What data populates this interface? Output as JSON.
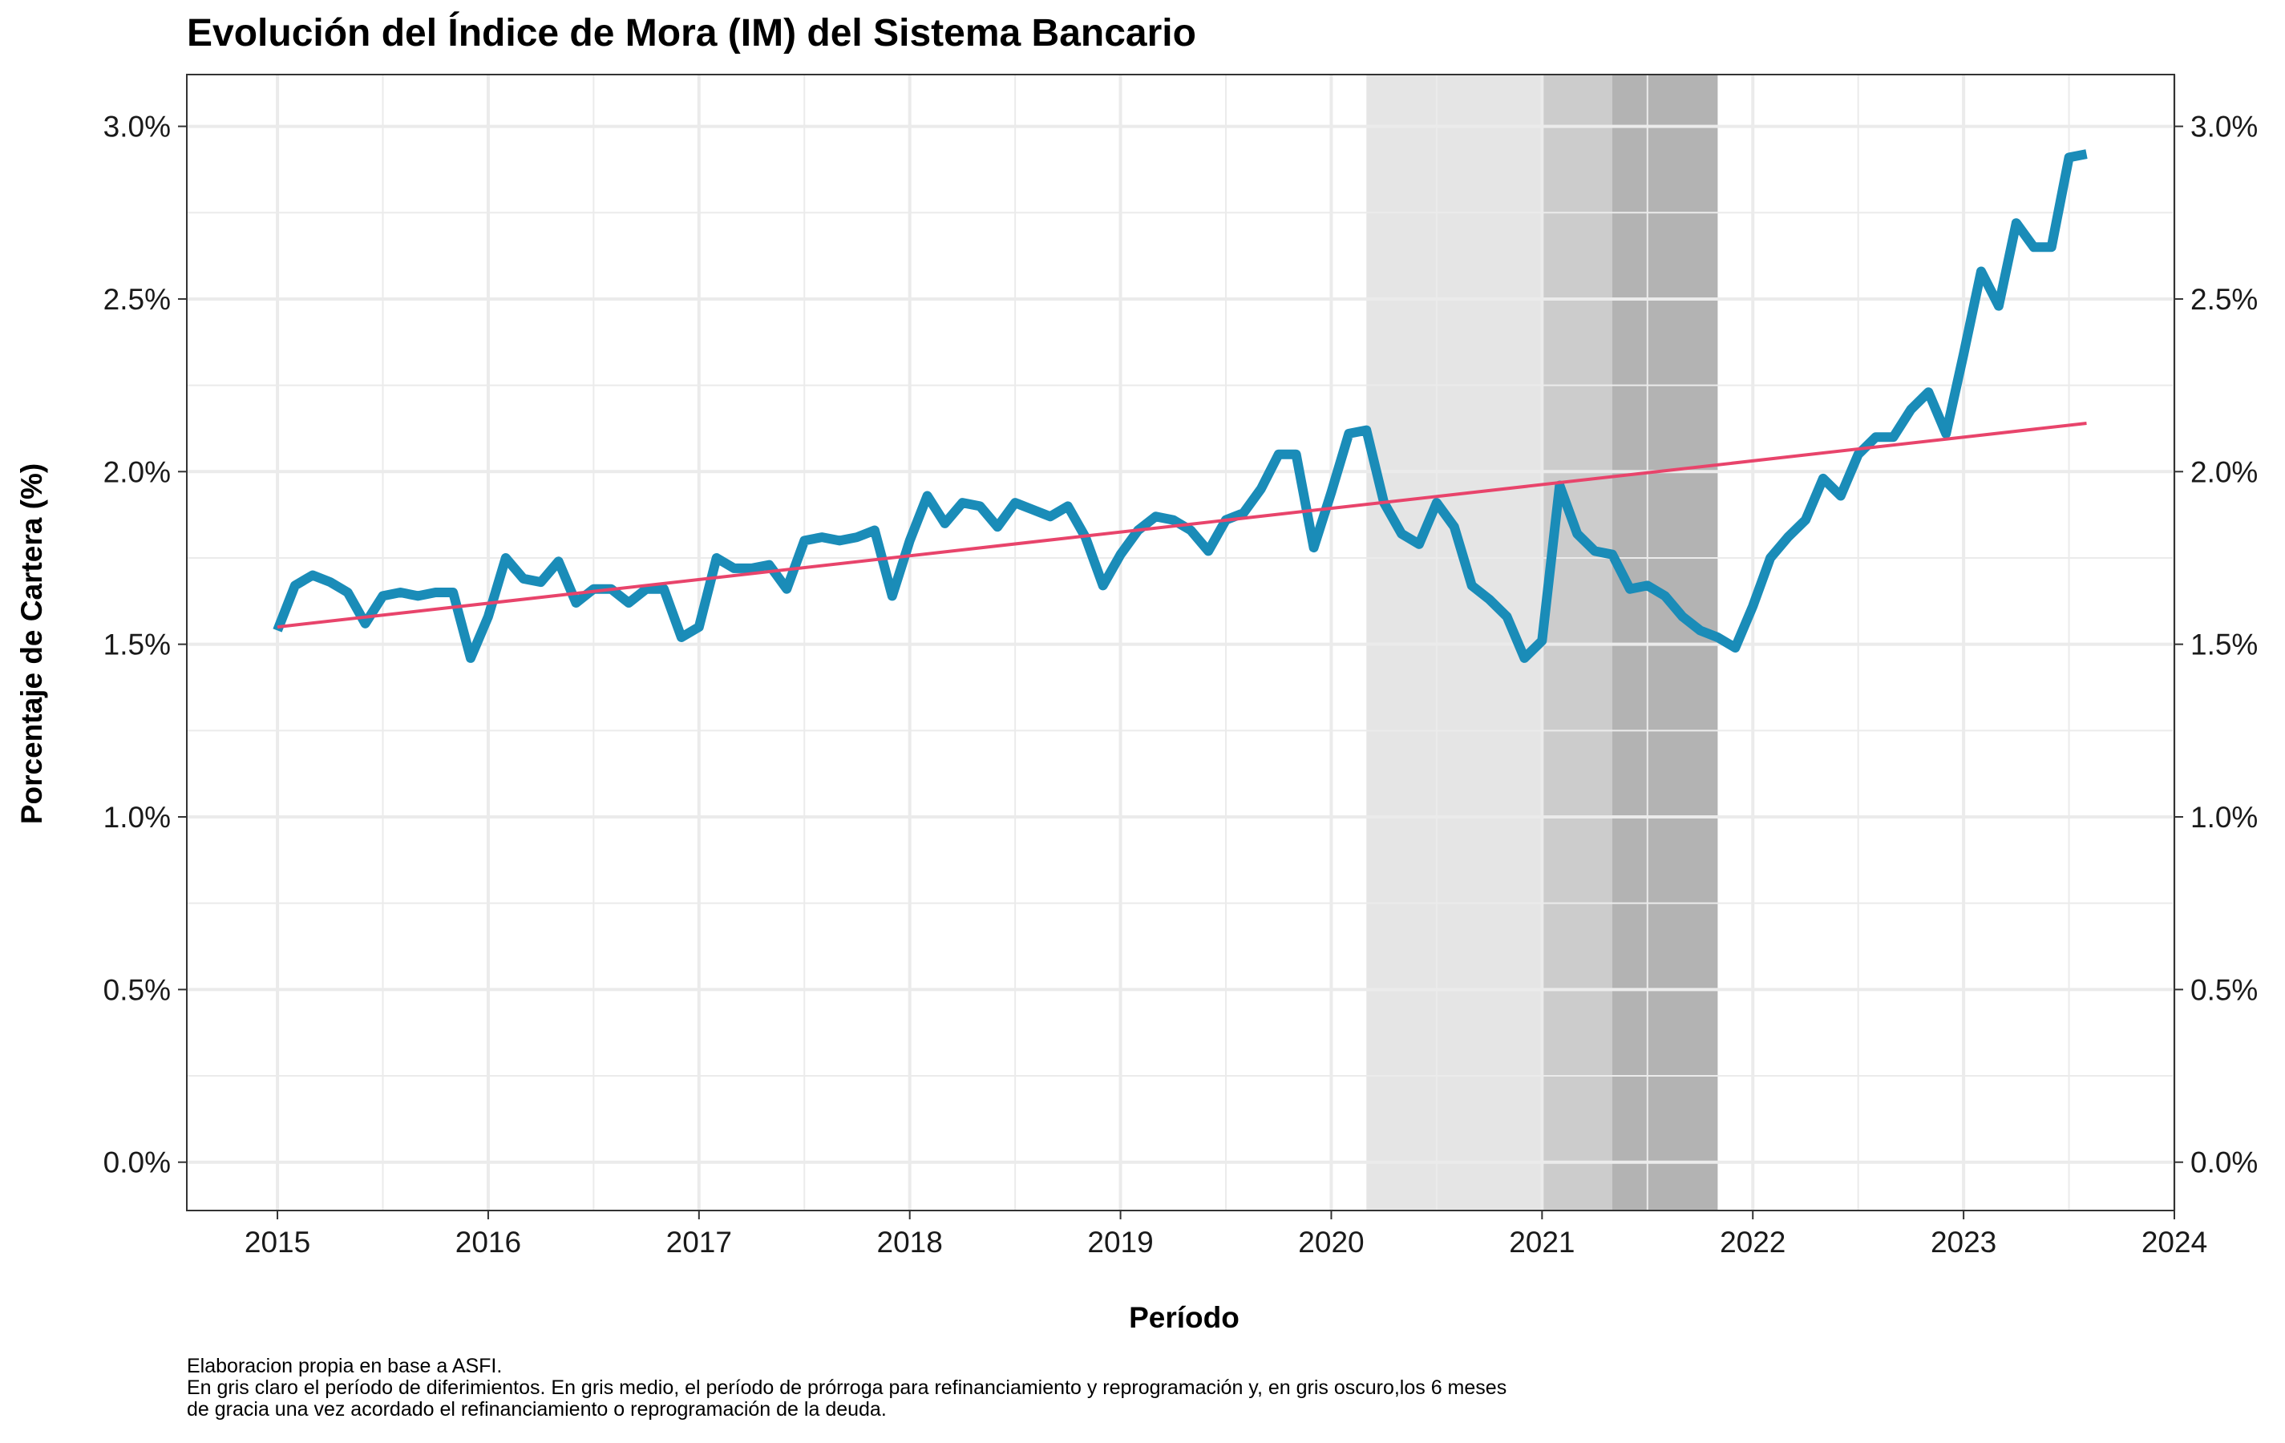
{
  "chart_data": {
    "type": "line",
    "title": "Evolución del Índice de Mora (IM) del Sistema Bancario",
    "xlabel": "Período",
    "ylabel": "Porcentaje de Cartera (%)",
    "caption_lines": [
      "Elaboracion propia en base a ASFI.",
      "En gris claro el período de diferimientos. En gris medio, el período de prórroga para refinanciamiento y reprogramación y, en gris oscuro,los 6 meses",
      "de gracia una vez acordado el refinanciamiento o reprogramación de la deuda."
    ],
    "xlim": [
      2014.57,
      2024.0
    ],
    "ylim": [
      -0.14,
      3.15
    ],
    "x_ticks": [
      2015,
      2016,
      2017,
      2018,
      2019,
      2020,
      2021,
      2022,
      2023,
      2024
    ],
    "x_tick_labels": [
      "2015",
      "2016",
      "2017",
      "2018",
      "2019",
      "2020",
      "2021",
      "2022",
      "2023",
      "2024"
    ],
    "y_ticks": [
      0.0,
      0.5,
      1.0,
      1.5,
      2.0,
      2.5,
      3.0
    ],
    "y_tick_labels": [
      "0.0%",
      "0.5%",
      "1.0%",
      "1.5%",
      "2.0%",
      "2.5%",
      "3.0%"
    ],
    "secondary_y_axis": true,
    "grid": true,
    "shaded_periods": [
      {
        "start": 2020.1667,
        "end": 2021.0,
        "color": "#e5e5e5",
        "shade": "light"
      },
      {
        "start": 2021.0,
        "end": 2021.3333,
        "color": "#cccccc",
        "shade": "medium"
      },
      {
        "start": 2021.3333,
        "end": 2021.8333,
        "color": "#b3b3b3",
        "shade": "dark"
      }
    ],
    "series": [
      {
        "color": "#1a8cb8",
        "x_start": 2015.0,
        "x_step_months": 1,
        "values": [
          1.54,
          1.67,
          1.7,
          1.68,
          1.65,
          1.56,
          1.64,
          1.65,
          1.64,
          1.65,
          1.65,
          1.46,
          1.58,
          1.75,
          1.69,
          1.68,
          1.74,
          1.62,
          1.66,
          1.66,
          1.62,
          1.66,
          1.66,
          1.52,
          1.55,
          1.75,
          1.72,
          1.72,
          1.73,
          1.66,
          1.8,
          1.81,
          1.8,
          1.81,
          1.83,
          1.64,
          1.8,
          1.93,
          1.85,
          1.91,
          1.9,
          1.84,
          1.91,
          1.89,
          1.87,
          1.9,
          1.81,
          1.67,
          1.76,
          1.83,
          1.87,
          1.86,
          1.83,
          1.77,
          1.86,
          1.88,
          1.95,
          2.05,
          2.05,
          1.78,
          1.94,
          2.11,
          2.12,
          1.91,
          1.82,
          1.79,
          1.91,
          1.84,
          1.67,
          1.63,
          1.58,
          1.46,
          1.51,
          1.96,
          1.82,
          1.77,
          1.76,
          1.66,
          1.67,
          1.64,
          1.58,
          1.54,
          1.52,
          1.49,
          1.61,
          1.75,
          1.81,
          1.86,
          1.98,
          1.93,
          2.05,
          2.1,
          2.1,
          2.18,
          2.23,
          2.11,
          2.34,
          2.58,
          2.48,
          2.72,
          2.65,
          2.65,
          2.91,
          2.92
        ]
      },
      {
        "color": "#e8446b",
        "type": "trend",
        "x": [
          2015.0,
          2023.5833
        ],
        "values": [
          1.55,
          2.14
        ]
      }
    ]
  }
}
